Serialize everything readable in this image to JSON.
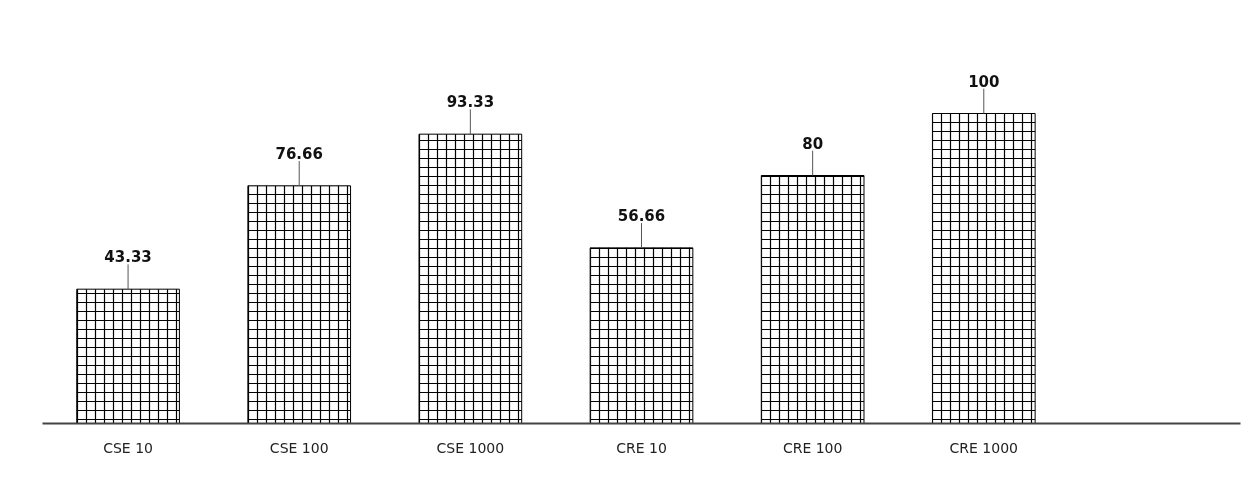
{
  "chart_data": {
    "type": "bar",
    "categories": [
      "CSE 10",
      "CSE 100",
      "CSE 1000",
      "CRE 10",
      "CRE 100",
      "CRE 1000",
      null
    ],
    "values": [
      43.33,
      76.66,
      93.33,
      56.66,
      80,
      100,
      null
    ],
    "color": "#000000",
    "data_labels": true
  }
}
